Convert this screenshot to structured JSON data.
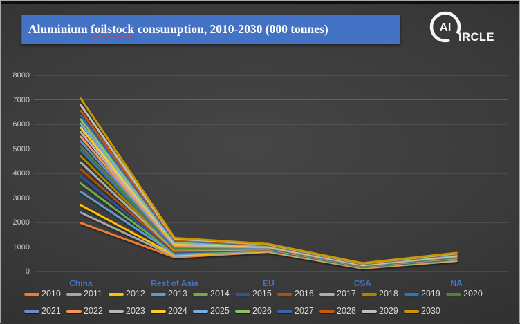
{
  "title": {
    "part1": "Aluminium ",
    "misspelled_word": "foilstock",
    "part2": " consumption, 2010-2030 (000 tonnes)"
  },
  "logo": {
    "circle_text": "Al",
    "suffix": "IRCLE"
  },
  "colors": {
    "title_bar": "#4472C4",
    "category_label": "#4472C4",
    "axis_text": "#C9C9C9",
    "legend_text": "#D9D9D9",
    "gridline": "#7a7a7a"
  },
  "chart_data": {
    "type": "line",
    "title": "Aluminium foilstock consumption, 2010-2030 (000 tonnes)",
    "xlabel": "",
    "ylabel": "",
    "categories": [
      "China",
      "Rest of Asia",
      "EU",
      "CSA",
      "NA"
    ],
    "ylim": [
      0,
      8000
    ],
    "y_ticks": [
      0,
      1000,
      2000,
      3000,
      4000,
      5000,
      6000,
      7000,
      8000
    ],
    "grid": true,
    "legend_position": "bottom, two rows (2010-2020 / 2021-2030)",
    "legend_rows": [
      11,
      10
    ],
    "series": [
      {
        "name": "2010",
        "color": "#ED7D31",
        "values": [
          1980,
          580,
          800,
          130,
          430
        ]
      },
      {
        "name": "2011",
        "color": "#A5A5A5",
        "values": [
          2400,
          620,
          816,
          140,
          446
        ]
      },
      {
        "name": "2012",
        "color": "#FFC000",
        "values": [
          2700,
          660,
          832,
          151,
          463
        ]
      },
      {
        "name": "2013",
        "color": "#5B9BD5",
        "values": [
          3250,
          700,
          848,
          161,
          479
        ]
      },
      {
        "name": "2014",
        "color": "#70AD47",
        "values": [
          3590,
          740,
          864,
          172,
          496
        ]
      },
      {
        "name": "2015",
        "color": "#2F5597",
        "values": [
          3870,
          778,
          880,
          182,
          512
        ]
      },
      {
        "name": "2016",
        "color": "#B05010",
        "values": [
          4160,
          817,
          896,
          193,
          529
        ]
      },
      {
        "name": "2017",
        "color": "#ACACAC",
        "values": [
          4440,
          857,
          912,
          203,
          545
        ]
      },
      {
        "name": "2018",
        "color": "#AD8600",
        "values": [
          4700,
          896,
          928,
          214,
          562
        ]
      },
      {
        "name": "2019",
        "color": "#2E75B6",
        "values": [
          4950,
          936,
          944,
          224,
          578
        ]
      },
      {
        "name": "2020",
        "color": "#548235",
        "values": [
          5100,
          975,
          960,
          235,
          595
        ]
      },
      {
        "name": "2021",
        "color": "#698ED0",
        "values": [
          5300,
          1015,
          976,
          245,
          611
        ]
      },
      {
        "name": "2022",
        "color": "#F1975A",
        "values": [
          5490,
          1054,
          992,
          256,
          628
        ]
      },
      {
        "name": "2023",
        "color": "#B7B7B7",
        "values": [
          5680,
          1094,
          1008,
          266,
          644
        ]
      },
      {
        "name": "2024",
        "color": "#FFCD33",
        "values": [
          5860,
          1133,
          1024,
          277,
          661
        ]
      },
      {
        "name": "2025",
        "color": "#7CAFDD",
        "values": [
          6030,
          1173,
          1040,
          287,
          677
        ]
      },
      {
        "name": "2026",
        "color": "#8CC168",
        "values": [
          6200,
          1212,
          1056,
          298,
          694
        ]
      },
      {
        "name": "2027",
        "color": "#3A64AD",
        "values": [
          6360,
          1252,
          1072,
          308,
          710
        ]
      },
      {
        "name": "2028",
        "color": "#C55A11",
        "values": [
          6550,
          1291,
          1088,
          319,
          727
        ]
      },
      {
        "name": "2029",
        "color": "#BFBFBF",
        "values": [
          6780,
          1331,
          1104,
          329,
          743
        ]
      },
      {
        "name": "2030",
        "color": "#C99700",
        "values": [
          7050,
          1370,
          1120,
          340,
          760
        ]
      }
    ]
  }
}
